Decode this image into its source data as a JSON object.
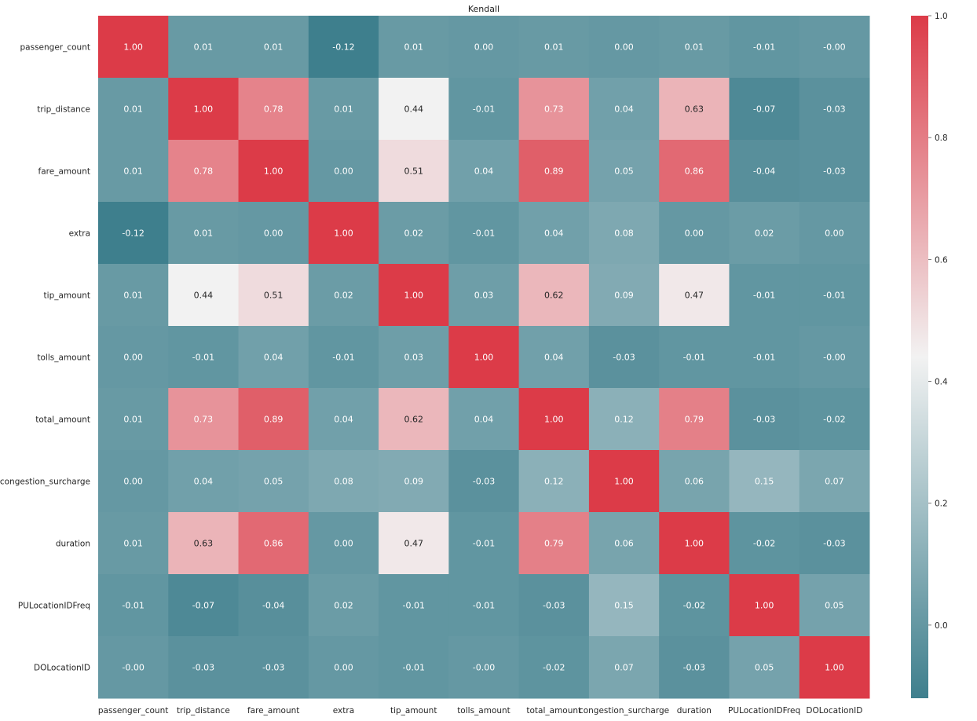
{
  "chart_data": {
    "type": "heatmap",
    "title": "Kendall",
    "labels": [
      "passenger_count",
      "trip_distance",
      "fare_amount",
      "extra",
      "tip_amount",
      "tolls_amount",
      "total_amount",
      "congestion_surcharge",
      "duration",
      "PULocationIDFreq",
      "DOLocationID"
    ],
    "values": [
      [
        1.0,
        0.01,
        0.01,
        -0.12,
        0.01,
        0.0,
        0.01,
        0.0,
        0.01,
        -0.01,
        -0.0
      ],
      [
        0.01,
        1.0,
        0.78,
        0.01,
        0.44,
        -0.01,
        0.73,
        0.04,
        0.63,
        -0.07,
        -0.03
      ],
      [
        0.01,
        0.78,
        1.0,
        0.0,
        0.51,
        0.04,
        0.89,
        0.05,
        0.86,
        -0.04,
        -0.03
      ],
      [
        -0.12,
        0.01,
        0.0,
        1.0,
        0.02,
        -0.01,
        0.04,
        0.08,
        0.0,
        0.02,
        0.0
      ],
      [
        0.01,
        0.44,
        0.51,
        0.02,
        1.0,
        0.03,
        0.62,
        0.09,
        0.47,
        -0.01,
        -0.01
      ],
      [
        0.0,
        -0.01,
        0.04,
        -0.01,
        0.03,
        1.0,
        0.04,
        -0.03,
        -0.01,
        -0.01,
        -0.0
      ],
      [
        0.01,
        0.73,
        0.89,
        0.04,
        0.62,
        0.04,
        1.0,
        0.12,
        0.79,
        -0.03,
        -0.02
      ],
      [
        0.0,
        0.04,
        0.05,
        0.08,
        0.09,
        -0.03,
        0.12,
        1.0,
        0.06,
        0.15,
        0.07
      ],
      [
        0.01,
        0.63,
        0.86,
        0.0,
        0.47,
        -0.01,
        0.79,
        0.06,
        1.0,
        -0.02,
        -0.03
      ],
      [
        -0.01,
        -0.07,
        -0.04,
        0.02,
        -0.01,
        -0.01,
        -0.03,
        0.15,
        -0.02,
        1.0,
        0.05
      ],
      [
        -0.0,
        -0.03,
        -0.03,
        0.0,
        -0.01,
        -0.0,
        -0.02,
        0.07,
        -0.03,
        0.05,
        1.0
      ]
    ],
    "value_format": "2 decimals",
    "colorbar": {
      "range": [
        -0.12,
        1.0
      ],
      "ticks": [
        0.0,
        0.2,
        0.4,
        0.6,
        0.8,
        1.0
      ],
      "tick_labels": [
        "0.0",
        "0.2",
        "0.4",
        "0.6",
        "0.8",
        "1.0"
      ],
      "colormap": "diverging teal-white-red",
      "colors": {
        "low": "#3e7f8d",
        "mid": "#f2f2f2",
        "high": "#dc3b48"
      }
    }
  }
}
